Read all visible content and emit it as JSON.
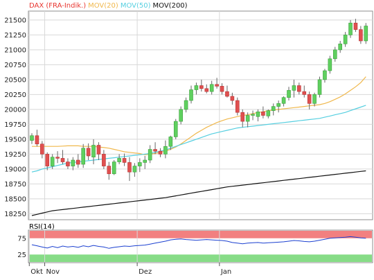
{
  "chart_data": [
    {
      "type": "candlestick",
      "legend": [
        {
          "label": "DAX (FRA-Indik.)",
          "color": "#e8352f"
        },
        {
          "label": "MOV(20)",
          "color": "#f0b84c"
        },
        {
          "label": "MOV(50)",
          "color": "#55cfe0"
        },
        {
          "label": "MOV(200)",
          "color": "#111111"
        }
      ],
      "ylim": [
        18150,
        21650
      ],
      "y_ticks": [
        18250,
        18500,
        18750,
        19000,
        19250,
        19500,
        19750,
        20000,
        20250,
        20500,
        20750,
        21000,
        21250,
        21500
      ],
      "y_tick_labels": [
        "18250",
        "18500",
        "18750",
        "19000",
        "19250",
        "19500",
        "19750",
        "20000",
        "20250",
        "20500",
        "20750",
        "21000",
        "21250",
        "21500"
      ],
      "grid": true,
      "x_ticks": [
        {
          "label": "Okt",
          "index": 0
        },
        {
          "label": "Nov",
          "index": 3
        },
        {
          "label": "Dez",
          "index": 21
        },
        {
          "label": "Jan",
          "index": 37
        }
      ],
      "up_color": "#5fd05f",
      "down_color": "#e05050",
      "candles": [
        [
          19480,
          19600,
          19420,
          19560
        ],
        [
          19560,
          19660,
          19380,
          19420
        ],
        [
          19420,
          19470,
          19180,
          19250
        ],
        [
          19250,
          19280,
          18980,
          19050
        ],
        [
          19050,
          19250,
          19000,
          19200
        ],
        [
          19200,
          19300,
          19100,
          19180
        ],
        [
          19180,
          19320,
          19080,
          19120
        ],
        [
          19120,
          19180,
          19000,
          19050
        ],
        [
          19050,
          19200,
          18980,
          19150
        ],
        [
          19150,
          19250,
          19020,
          19080
        ],
        [
          19080,
          19420,
          19020,
          19350
        ],
        [
          19350,
          19430,
          19150,
          19220
        ],
        [
          19200,
          19500,
          19080,
          19400
        ],
        [
          19400,
          19450,
          19150,
          19250
        ],
        [
          19250,
          19320,
          19000,
          19050
        ],
        [
          19050,
          19120,
          18820,
          18920
        ],
        [
          18920,
          19150,
          18900,
          19120
        ],
        [
          19120,
          19250,
          19080,
          19180
        ],
        [
          19180,
          19260,
          19050,
          19110
        ],
        [
          19110,
          19200,
          18800,
          18950
        ],
        [
          18950,
          19100,
          18870,
          19050
        ],
        [
          19050,
          19180,
          18950,
          19110
        ],
        [
          19110,
          19220,
          19000,
          19150
        ],
        [
          19150,
          19400,
          19100,
          19330
        ],
        [
          19330,
          19450,
          19250,
          19300
        ],
        [
          19300,
          19350,
          19200,
          19250
        ],
        [
          19250,
          19480,
          19180,
          19380
        ],
        [
          19380,
          19560,
          19320,
          19540
        ],
        [
          19540,
          19840,
          19500,
          19800
        ],
        [
          19800,
          20050,
          19750,
          20000
        ],
        [
          20000,
          20200,
          19950,
          20150
        ],
        [
          20150,
          20400,
          20100,
          20330
        ],
        [
          20330,
          20450,
          20250,
          20400
        ],
        [
          20400,
          20500,
          20300,
          20350
        ],
        [
          20350,
          20420,
          20270,
          20300
        ],
        [
          20300,
          20480,
          20250,
          20420
        ],
        [
          20420,
          20530,
          20350,
          20390
        ],
        [
          20390,
          20440,
          20250,
          20300
        ],
        [
          20300,
          20400,
          20200,
          20220
        ],
        [
          20220,
          20280,
          20080,
          20150
        ],
        [
          20150,
          20200,
          19900,
          19950
        ],
        [
          19950,
          20000,
          19700,
          19800
        ],
        [
          19800,
          19950,
          19700,
          19900
        ],
        [
          19900,
          19980,
          19820,
          19920
        ],
        [
          19880,
          20000,
          19800,
          19960
        ],
        [
          19960,
          20050,
          19850,
          19900
        ],
        [
          19890,
          20000,
          19850,
          19980
        ],
        [
          19980,
          20100,
          19900,
          20050
        ],
        [
          20050,
          20150,
          19950,
          20100
        ],
        [
          20100,
          20220,
          20050,
          20200
        ],
        [
          20200,
          20380,
          20150,
          20320
        ],
        [
          20320,
          20500,
          20200,
          20400
        ],
        [
          20400,
          20450,
          20250,
          20300
        ],
        [
          20300,
          20400,
          20200,
          20250
        ],
        [
          20250,
          20300,
          20000,
          20100
        ],
        [
          20100,
          20280,
          20050,
          20250
        ],
        [
          20250,
          20550,
          20200,
          20500
        ],
        [
          20500,
          20680,
          20450,
          20650
        ],
        [
          20650,
          20900,
          20600,
          20850
        ],
        [
          20850,
          21050,
          20800,
          21000
        ],
        [
          21000,
          21150,
          20950,
          21100
        ],
        [
          21100,
          21300,
          21050,
          21250
        ],
        [
          21250,
          21500,
          21200,
          21450
        ],
        [
          21450,
          21520,
          21300,
          21340
        ],
        [
          21340,
          21400,
          21100,
          21150
        ],
        [
          21150,
          21450,
          21100,
          21400
        ]
      ],
      "ma_series": [
        {
          "name": "MOV(20)",
          "color": "#f0b84c",
          "values": [
            19380,
            19380,
            19380,
            19380,
            19380,
            19380,
            19385,
            19390,
            19390,
            19390,
            19380,
            19380,
            19380,
            19370,
            19360,
            19350,
            19330,
            19310,
            19290,
            19280,
            19270,
            19260,
            19240,
            19250,
            19260,
            19280,
            19300,
            19330,
            19370,
            19420,
            19480,
            19540,
            19600,
            19650,
            19700,
            19740,
            19780,
            19810,
            19840,
            19860,
            19880,
            19900,
            19910,
            19930,
            19950,
            19960,
            19980,
            19990,
            20000,
            20010,
            20020,
            20030,
            20040,
            20050,
            20060,
            20070,
            20080,
            20100,
            20130,
            20170,
            20210,
            20260,
            20320,
            20380,
            20450,
            20550
          ]
        },
        {
          "name": "MOV(50)",
          "color": "#55cfe0",
          "values": [
            18950,
            18970,
            19000,
            19020,
            19040,
            19060,
            19080,
            19100,
            19110,
            19120,
            19130,
            19140,
            19150,
            19160,
            19170,
            19180,
            19190,
            19200,
            19210,
            19220,
            19230,
            19240,
            19250,
            19260,
            19280,
            19300,
            19320,
            19350,
            19380,
            19410,
            19440,
            19470,
            19500,
            19530,
            19560,
            19590,
            19610,
            19630,
            19650,
            19670,
            19690,
            19700,
            19710,
            19720,
            19730,
            19740,
            19750,
            19760,
            19770,
            19780,
            19790,
            19800,
            19810,
            19820,
            19830,
            19840,
            19850,
            19870,
            19890,
            19910,
            19930,
            19950,
            19980,
            20010,
            20040,
            20070
          ]
        },
        {
          "name": "MOV(200)",
          "color": "#111111",
          "values": [
            18220,
            18240,
            18260,
            18280,
            18300,
            18310,
            18320,
            18330,
            18340,
            18350,
            18360,
            18370,
            18380,
            18390,
            18400,
            18410,
            18420,
            18430,
            18440,
            18450,
            18460,
            18470,
            18480,
            18490,
            18500,
            18510,
            18520,
            18535,
            18550,
            18565,
            18580,
            18595,
            18610,
            18625,
            18640,
            18655,
            18670,
            18685,
            18700,
            18710,
            18720,
            18730,
            18740,
            18750,
            18760,
            18770,
            18780,
            18790,
            18800,
            18810,
            18820,
            18830,
            18840,
            18850,
            18860,
            18870,
            18880,
            18890,
            18900,
            18910,
            18920,
            18930,
            18940,
            18950,
            18960,
            18970
          ]
        }
      ]
    },
    {
      "type": "line",
      "title": "RSI(14)",
      "ylim": [
        0,
        100
      ],
      "y_ticks": [
        25,
        75
      ],
      "y_tick_labels": [
        "25",
        "75"
      ],
      "overbought_color": "#f06a6a",
      "oversold_color": "#7ad87a",
      "series": [
        {
          "color": "#1a3fd0",
          "values": [
            55,
            52,
            48,
            45,
            50,
            46,
            51,
            48,
            50,
            47,
            52,
            49,
            53,
            50,
            48,
            44,
            47,
            49,
            51,
            50,
            52,
            53,
            54,
            57,
            60,
            63,
            66,
            70,
            72,
            73,
            71,
            70,
            69,
            70,
            71,
            70,
            69,
            68,
            66,
            62,
            60,
            58,
            60,
            61,
            62,
            60,
            61,
            62,
            63,
            64,
            66,
            68,
            67,
            65,
            64,
            66,
            69,
            72,
            75,
            76,
            77,
            78,
            80,
            78,
            76,
            75
          ]
        }
      ]
    }
  ]
}
